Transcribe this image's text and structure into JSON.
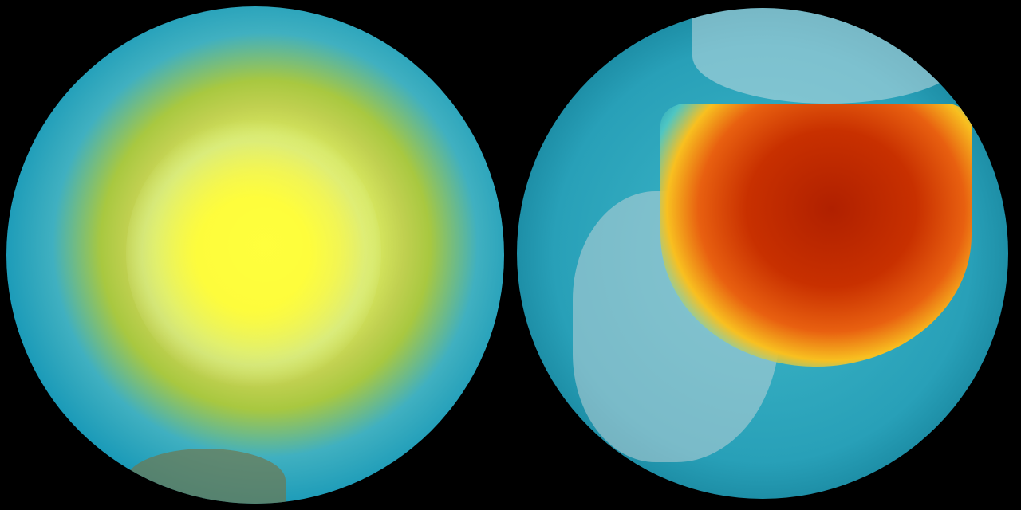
{
  "globes": [
    {
      "view": "left",
      "colors": [
        "#ffff40",
        "#a8c840",
        "#1a9ab8",
        "#06304a"
      ]
    },
    {
      "view": "right",
      "colors": [
        "#b02000",
        "#e86010",
        "#f8c020",
        "#28a0b8"
      ]
    }
  ],
  "background": "#000000"
}
